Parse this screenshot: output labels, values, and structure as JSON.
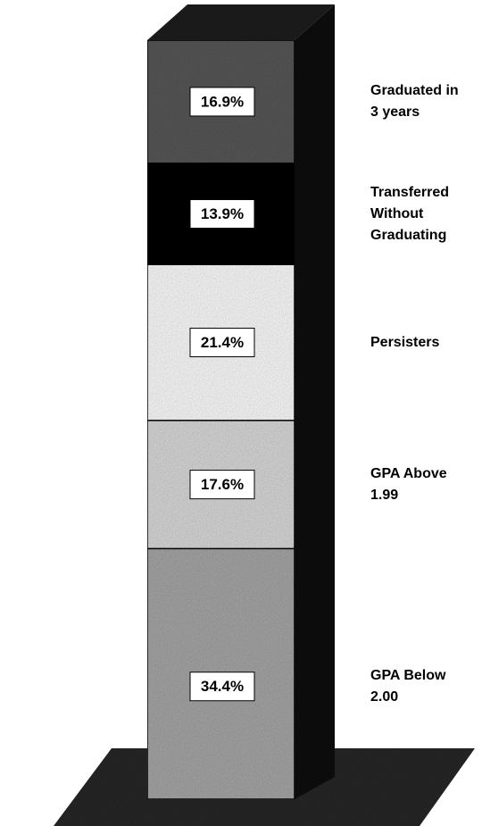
{
  "chart_data": {
    "type": "stacked-bar-3d",
    "series": [
      {
        "name": "GPA Below 2.00",
        "color": "#a9a9a9",
        "values": [
          34.4
        ],
        "value_labels": [
          "34.4%"
        ]
      },
      {
        "name": "GPA Above 1.99",
        "color": "#dcdcdc",
        "values": [
          17.6
        ],
        "value_labels": [
          "17.6%"
        ]
      },
      {
        "name": "Persisters",
        "color": "#ffffff",
        "values": [
          21.4
        ],
        "value_labels": [
          "21.4%"
        ]
      },
      {
        "name": "Transferred Without Graduating",
        "color": "#101010",
        "values": [
          13.9
        ],
        "value_labels": [
          "13.9%"
        ]
      },
      {
        "name": "Graduated in 3 years",
        "color": "#5a5a5a",
        "values": [
          16.9
        ],
        "value_labels": [
          "16.9%"
        ]
      }
    ]
  }
}
